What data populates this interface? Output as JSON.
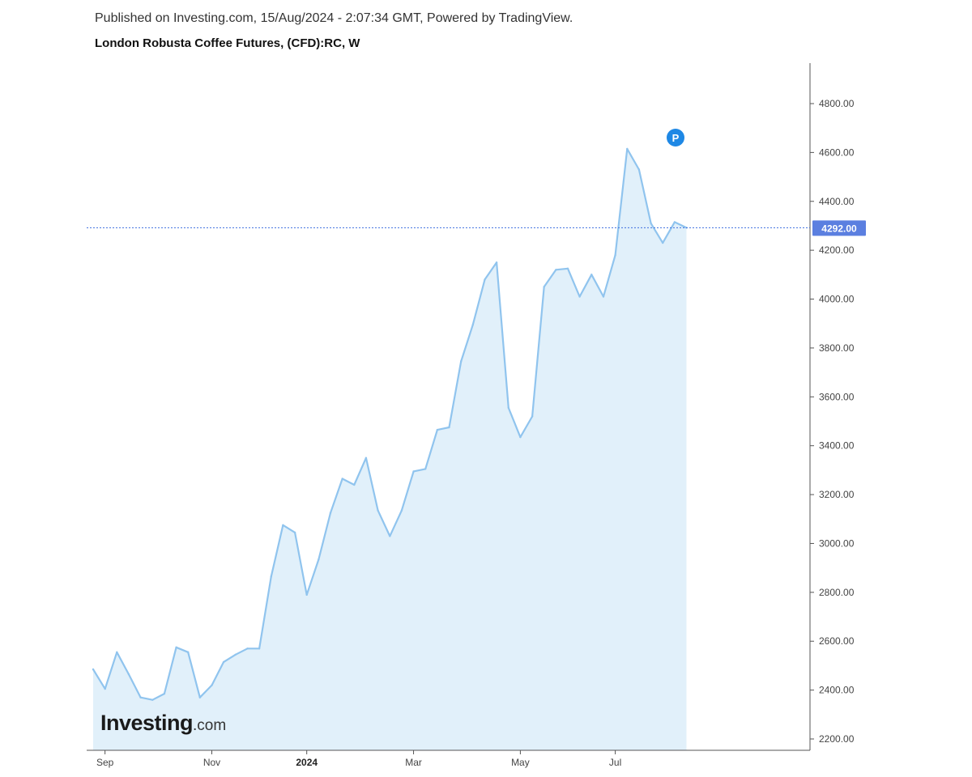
{
  "header": {
    "published": "Published on Investing.com, 15/Aug/2024 - 2:07:34 GMT, Powered by TradingView.",
    "title": "London Robusta Coffee Futures, (CFD):RC, W"
  },
  "watermark": {
    "brand": "Investing",
    "suffix": ".com"
  },
  "marker": {
    "label": "P",
    "icon": "p-marker-icon",
    "color": "#1e88e5"
  },
  "current_price": {
    "label": "4292.00",
    "value": 4292,
    "color": "#5b7fe0"
  },
  "colors": {
    "line": "#90c4ee",
    "fill": "#e1f0fa",
    "axis": "#555555",
    "price_line": "#3f6fdf"
  },
  "chart_data": {
    "type": "area",
    "title": "London Robusta Coffee Futures, (CFD):RC, W",
    "xlabel": "",
    "ylabel": "",
    "ylim": [
      2160,
      4880
    ],
    "grid": false,
    "x_ticks": [
      {
        "label": "Sep",
        "index": 1,
        "bold": false
      },
      {
        "label": "Nov",
        "index": 10,
        "bold": false
      },
      {
        "label": "2024",
        "index": 18,
        "bold": true
      },
      {
        "label": "Mar",
        "index": 27,
        "bold": false
      },
      {
        "label": "May",
        "index": 36,
        "bold": false
      },
      {
        "label": "Jul",
        "index": 44,
        "bold": false
      }
    ],
    "y_ticks": [
      2200,
      2400,
      2600,
      2800,
      3000,
      3200,
      3400,
      3600,
      3800,
      4000,
      4200,
      4400,
      4600,
      4800
    ],
    "series": [
      {
        "values": [
          2485,
          2405,
          2555,
          2465,
          2370,
          2360,
          2385,
          2575,
          2555,
          2370,
          2420,
          2515,
          2545,
          2570,
          2570,
          2865,
          3075,
          3045,
          2790,
          2935,
          3125,
          3265,
          3240,
          3350,
          3135,
          3030,
          3135,
          3295,
          3305,
          3465,
          3475,
          3745,
          3895,
          4080,
          4150,
          3555,
          3435,
          3520,
          4050,
          4120,
          4125,
          4010,
          4100,
          4010,
          4180,
          4615,
          4530,
          4310,
          4230,
          4315,
          4292
        ]
      }
    ]
  }
}
